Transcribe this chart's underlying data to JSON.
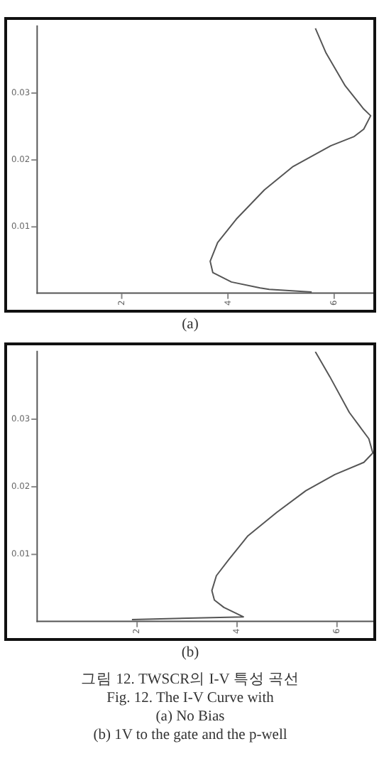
{
  "chart_data": [
    {
      "type": "line",
      "annotations": [
        "(a)"
      ],
      "xlim": [
        0.4,
        6.73
      ],
      "xticks": [
        2,
        4,
        6
      ],
      "ylim": [
        0,
        0.04
      ],
      "yticks": [
        0.01,
        0.02,
        0.03
      ],
      "grid": false,
      "legend": false,
      "marker": "none",
      "line_style": "solid",
      "series": [
        {
          "color": "#555555",
          "x": [
            5.64,
            5.84,
            6.2,
            6.55,
            6.68,
            6.55,
            6.37,
            5.93,
            5.22,
            4.68,
            4.15,
            3.8,
            3.66,
            3.71,
            4.06,
            4.6,
            4.77,
            5.57
          ],
          "values": [
            0.0397,
            0.036,
            0.0311,
            0.0276,
            0.0266,
            0.0246,
            0.0235,
            0.0221,
            0.019,
            0.0155,
            0.0111,
            0.0076,
            0.0048,
            0.0031,
            0.0017,
            0.0008,
            0.0006,
            0.0002
          ]
        }
      ]
    },
    {
      "type": "line",
      "annotations": [
        "(b)",
        "그림 12. TWSCR의 I-V 특성 곡선",
        "Fig. 12. The I-V Curve with",
        "(a) No Bias",
        "(b) 1V to the gate and the p-well"
      ],
      "xlim": [
        0,
        6.73
      ],
      "xticks": [
        2,
        4,
        6
      ],
      "ylim": [
        0,
        0.04
      ],
      "yticks": [
        0.01,
        0.02,
        0.03
      ],
      "grid": false,
      "legend": false,
      "marker": "none",
      "line_style": "solid",
      "series": [
        {
          "color": "#555555",
          "x": [
            5.57,
            5.86,
            6.25,
            6.64,
            6.72,
            6.54,
            5.96,
            5.38,
            4.8,
            4.22,
            3.84,
            3.59,
            3.5,
            3.55,
            3.74,
            4.13,
            1.9
          ],
          "values": [
            0.04,
            0.0363,
            0.031,
            0.0271,
            0.025,
            0.0236,
            0.0218,
            0.0194,
            0.0162,
            0.0127,
            0.0092,
            0.0068,
            0.0046,
            0.0032,
            0.0021,
            0.0007,
            0.0003
          ]
        }
      ]
    }
  ]
}
